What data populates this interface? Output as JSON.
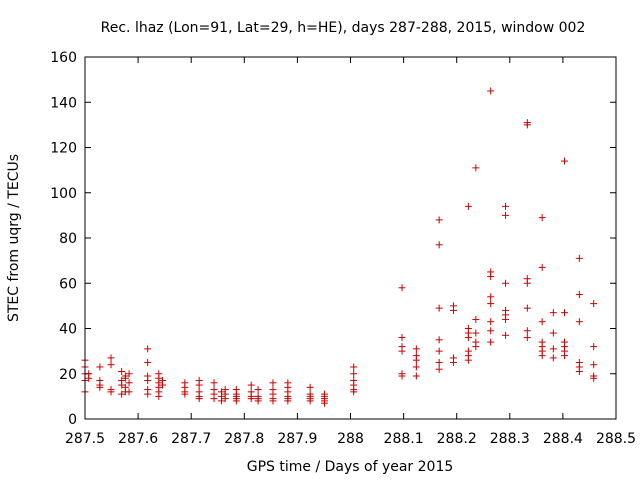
{
  "chart_data": {
    "type": "scatter",
    "title": "Rec. lhaz (Lon=91, Lat=29, h=HE), days 287-288, 2015, window 002",
    "xlabel": "GPS time / Days of year 2015",
    "ylabel": "STEC from uqrg / TECUs",
    "xlim": [
      287.5,
      288.5
    ],
    "ylim": [
      0,
      160
    ],
    "xticks": [
      "287.5",
      "287.6",
      "287.7",
      "287.8",
      "287.9",
      "288",
      "288.1",
      "288.2",
      "288.3",
      "288.4",
      "288.5"
    ],
    "yticks": [
      "0",
      "20",
      "40",
      "60",
      "80",
      "100",
      "120",
      "140",
      "160"
    ],
    "marker_color": "#cc0000",
    "marker": "plus",
    "grid": false,
    "legend": "none",
    "points": [
      [
        287.5,
        26
      ],
      [
        287.5,
        23
      ],
      [
        287.5,
        20
      ],
      [
        287.5,
        17
      ],
      [
        287.5,
        12
      ],
      [
        287.507,
        20
      ],
      [
        287.507,
        18
      ],
      [
        287.528,
        23
      ],
      [
        287.528,
        17
      ],
      [
        287.528,
        15
      ],
      [
        287.528,
        14
      ],
      [
        287.549,
        27
      ],
      [
        287.549,
        24
      ],
      [
        287.549,
        13
      ],
      [
        287.549,
        12
      ],
      [
        287.569,
        21
      ],
      [
        287.569,
        17
      ],
      [
        287.569,
        15
      ],
      [
        287.569,
        11
      ],
      [
        287.576,
        19
      ],
      [
        287.576,
        18
      ],
      [
        287.576,
        14
      ],
      [
        287.576,
        12
      ],
      [
        287.583,
        20
      ],
      [
        287.583,
        16
      ],
      [
        287.583,
        12
      ],
      [
        287.618,
        31
      ],
      [
        287.618,
        25
      ],
      [
        287.618,
        19
      ],
      [
        287.618,
        17
      ],
      [
        287.618,
        13
      ],
      [
        287.618,
        11
      ],
      [
        287.639,
        20
      ],
      [
        287.639,
        18
      ],
      [
        287.639,
        16
      ],
      [
        287.639,
        14
      ],
      [
        287.639,
        12
      ],
      [
        287.639,
        10
      ],
      [
        287.646,
        17
      ],
      [
        287.646,
        15
      ],
      [
        287.688,
        16
      ],
      [
        287.688,
        14
      ],
      [
        287.688,
        12
      ],
      [
        287.688,
        11
      ],
      [
        287.715,
        17
      ],
      [
        287.715,
        15
      ],
      [
        287.715,
        12
      ],
      [
        287.715,
        10
      ],
      [
        287.715,
        9
      ],
      [
        287.743,
        16
      ],
      [
        287.743,
        13
      ],
      [
        287.743,
        11
      ],
      [
        287.743,
        9
      ],
      [
        287.757,
        12
      ],
      [
        287.757,
        10
      ],
      [
        287.757,
        8
      ],
      [
        287.764,
        13
      ],
      [
        287.764,
        11
      ],
      [
        287.764,
        9
      ],
      [
        287.785,
        13
      ],
      [
        287.785,
        11
      ],
      [
        287.785,
        10
      ],
      [
        287.785,
        9
      ],
      [
        287.785,
        8
      ],
      [
        287.813,
        15
      ],
      [
        287.813,
        12
      ],
      [
        287.813,
        10
      ],
      [
        287.813,
        9
      ],
      [
        287.826,
        13
      ],
      [
        287.826,
        10
      ],
      [
        287.826,
        9
      ],
      [
        287.826,
        8
      ],
      [
        287.854,
        16
      ],
      [
        287.854,
        13
      ],
      [
        287.854,
        11
      ],
      [
        287.854,
        9
      ],
      [
        287.854,
        8
      ],
      [
        287.882,
        16
      ],
      [
        287.882,
        14
      ],
      [
        287.882,
        12
      ],
      [
        287.882,
        10
      ],
      [
        287.882,
        9
      ],
      [
        287.882,
        8
      ],
      [
        287.924,
        14
      ],
      [
        287.924,
        11
      ],
      [
        287.924,
        10
      ],
      [
        287.924,
        9
      ],
      [
        287.924,
        8
      ],
      [
        287.951,
        11
      ],
      [
        287.951,
        10
      ],
      [
        287.951,
        9
      ],
      [
        287.951,
        8
      ],
      [
        287.951,
        7
      ],
      [
        288.006,
        23
      ],
      [
        288.006,
        20
      ],
      [
        288.006,
        17
      ],
      [
        288.006,
        15
      ],
      [
        288.006,
        13
      ],
      [
        288.006,
        12
      ],
      [
        288.097,
        58
      ],
      [
        288.097,
        36
      ],
      [
        288.097,
        32
      ],
      [
        288.097,
        30
      ],
      [
        288.097,
        20
      ],
      [
        288.097,
        19
      ],
      [
        288.124,
        31
      ],
      [
        288.124,
        28
      ],
      [
        288.124,
        26
      ],
      [
        288.124,
        23
      ],
      [
        288.124,
        19
      ],
      [
        288.167,
        88
      ],
      [
        288.167,
        77
      ],
      [
        288.167,
        49
      ],
      [
        288.167,
        35
      ],
      [
        288.167,
        30
      ],
      [
        288.167,
        25
      ],
      [
        288.167,
        22
      ],
      [
        288.194,
        50
      ],
      [
        288.194,
        48
      ],
      [
        288.194,
        27
      ],
      [
        288.194,
        25
      ],
      [
        288.222,
        94
      ],
      [
        288.222,
        40
      ],
      [
        288.222,
        38
      ],
      [
        288.222,
        36
      ],
      [
        288.222,
        30
      ],
      [
        288.222,
        28
      ],
      [
        288.222,
        26
      ],
      [
        288.236,
        111
      ],
      [
        288.236,
        44
      ],
      [
        288.236,
        38
      ],
      [
        288.236,
        34
      ],
      [
        288.236,
        32
      ],
      [
        288.264,
        145
      ],
      [
        288.264,
        65
      ],
      [
        288.264,
        63
      ],
      [
        288.264,
        54
      ],
      [
        288.264,
        51
      ],
      [
        288.264,
        43
      ],
      [
        288.264,
        39
      ],
      [
        288.264,
        34
      ],
      [
        288.292,
        94
      ],
      [
        288.292,
        90
      ],
      [
        288.292,
        60
      ],
      [
        288.292,
        48
      ],
      [
        288.292,
        46
      ],
      [
        288.292,
        44
      ],
      [
        288.292,
        37
      ],
      [
        288.333,
        131
      ],
      [
        288.333,
        130
      ],
      [
        288.333,
        62
      ],
      [
        288.333,
        60
      ],
      [
        288.333,
        49
      ],
      [
        288.333,
        39
      ],
      [
        288.333,
        36
      ],
      [
        288.361,
        89
      ],
      [
        288.361,
        67
      ],
      [
        288.361,
        43
      ],
      [
        288.361,
        34
      ],
      [
        288.361,
        32
      ],
      [
        288.361,
        30
      ],
      [
        288.361,
        28
      ],
      [
        288.382,
        47
      ],
      [
        288.382,
        38
      ],
      [
        288.382,
        31
      ],
      [
        288.382,
        27
      ],
      [
        288.403,
        114
      ],
      [
        288.403,
        47
      ],
      [
        288.403,
        34
      ],
      [
        288.403,
        32
      ],
      [
        288.403,
        30
      ],
      [
        288.403,
        28
      ],
      [
        288.431,
        71
      ],
      [
        288.431,
        55
      ],
      [
        288.431,
        43
      ],
      [
        288.431,
        25
      ],
      [
        288.431,
        23
      ],
      [
        288.431,
        21
      ],
      [
        288.458,
        51
      ],
      [
        288.458,
        32
      ],
      [
        288.458,
        24
      ],
      [
        288.458,
        19
      ],
      [
        288.458,
        18
      ]
    ]
  }
}
